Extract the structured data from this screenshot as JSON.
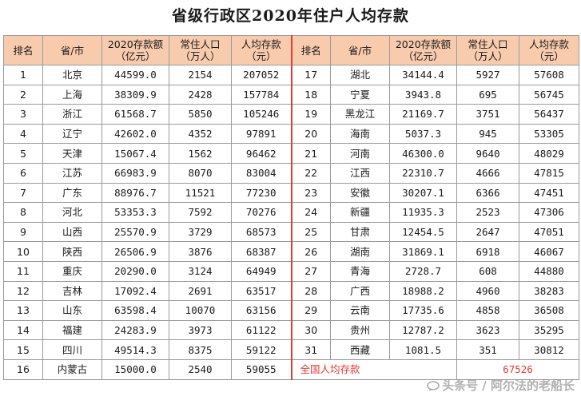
{
  "title": "省级行政区2020年住户人均存款",
  "headers": {
    "rank": "排名",
    "province": "省/市",
    "deposit_1": "2020存款额",
    "deposit_2": "（亿元）",
    "population_1": "常住人口",
    "population_2": "（万人）",
    "per_capita_1": "人均存款",
    "per_capita_2": "（元）"
  },
  "left_rows": [
    {
      "rank": "1",
      "province": "北京",
      "deposit": "44599.0",
      "population": "2154",
      "per_capita": "207052"
    },
    {
      "rank": "2",
      "province": "上海",
      "deposit": "38309.9",
      "population": "2428",
      "per_capita": "157784"
    },
    {
      "rank": "3",
      "province": "浙江",
      "deposit": "61568.7",
      "population": "5850",
      "per_capita": "105246"
    },
    {
      "rank": "4",
      "province": "辽宁",
      "deposit": "42602.0",
      "population": "4352",
      "per_capita": "97891"
    },
    {
      "rank": "5",
      "province": "天津",
      "deposit": "15067.4",
      "population": "1562",
      "per_capita": "96462"
    },
    {
      "rank": "6",
      "province": "江苏",
      "deposit": "66983.9",
      "population": "8070",
      "per_capita": "83004"
    },
    {
      "rank": "7",
      "province": "广东",
      "deposit": "88976.7",
      "population": "11521",
      "per_capita": "77230"
    },
    {
      "rank": "8",
      "province": "河北",
      "deposit": "53353.3",
      "population": "7592",
      "per_capita": "70276"
    },
    {
      "rank": "9",
      "province": "山西",
      "deposit": "25570.9",
      "population": "3729",
      "per_capita": "68573"
    },
    {
      "rank": "10",
      "province": "陕西",
      "deposit": "26506.9",
      "population": "3876",
      "per_capita": "68387"
    },
    {
      "rank": "11",
      "province": "重庆",
      "deposit": "20290.0",
      "population": "3124",
      "per_capita": "64949"
    },
    {
      "rank": "12",
      "province": "吉林",
      "deposit": "17092.4",
      "population": "2691",
      "per_capita": "63517"
    },
    {
      "rank": "13",
      "province": "山东",
      "deposit": "63598.4",
      "population": "10070",
      "per_capita": "63156"
    },
    {
      "rank": "14",
      "province": "福建",
      "deposit": "24283.9",
      "population": "3973",
      "per_capita": "61122"
    },
    {
      "rank": "15",
      "province": "四川",
      "deposit": "49514.3",
      "population": "8375",
      "per_capita": "59122"
    },
    {
      "rank": "16",
      "province": "内蒙古",
      "deposit": "15000.0",
      "population": "2540",
      "per_capita": "59055"
    }
  ],
  "right_rows": [
    {
      "rank": "17",
      "province": "湖北",
      "deposit": "34144.4",
      "population": "5927",
      "per_capita": "57608"
    },
    {
      "rank": "18",
      "province": "宁夏",
      "deposit": "3943.8",
      "population": "695",
      "per_capita": "56745"
    },
    {
      "rank": "19",
      "province": "黑龙江",
      "deposit": "21169.7",
      "population": "3751",
      "per_capita": "56437"
    },
    {
      "rank": "20",
      "province": "海南",
      "deposit": "5037.3",
      "population": "945",
      "per_capita": "53305"
    },
    {
      "rank": "21",
      "province": "河南",
      "deposit": "46300.0",
      "population": "9640",
      "per_capita": "48029"
    },
    {
      "rank": "22",
      "province": "江西",
      "deposit": "22310.7",
      "population": "4666",
      "per_capita": "47815"
    },
    {
      "rank": "23",
      "province": "安徽",
      "deposit": "30207.1",
      "population": "6366",
      "per_capita": "47451"
    },
    {
      "rank": "24",
      "province": "新疆",
      "deposit": "11935.3",
      "population": "2523",
      "per_capita": "47306"
    },
    {
      "rank": "25",
      "province": "甘肃",
      "deposit": "12454.5",
      "population": "2647",
      "per_capita": "47051"
    },
    {
      "rank": "26",
      "province": "湖南",
      "deposit": "31869.1",
      "population": "6918",
      "per_capita": "46067"
    },
    {
      "rank": "27",
      "province": "青海",
      "deposit": "2728.7",
      "population": "608",
      "per_capita": "44880"
    },
    {
      "rank": "28",
      "province": "广西",
      "deposit": "18988.2",
      "population": "4960",
      "per_capita": "38283"
    },
    {
      "rank": "29",
      "province": "云南",
      "deposit": "17735.6",
      "population": "4858",
      "per_capita": "36508"
    },
    {
      "rank": "30",
      "province": "贵州",
      "deposit": "12787.2",
      "population": "3623",
      "per_capita": "35295"
    },
    {
      "rank": "31",
      "province": "西藏",
      "deposit": "1081.5",
      "population": "351",
      "per_capita": "30812"
    }
  ],
  "national": {
    "label": "全国人均存款",
    "value": "67526"
  },
  "watermark": "头条号 / 阿尔法的老船长",
  "colors": {
    "header_bg": "#f8cbad",
    "divider": "#e53935",
    "total_text": "#e53935",
    "grid": "#9a9a9a"
  }
}
